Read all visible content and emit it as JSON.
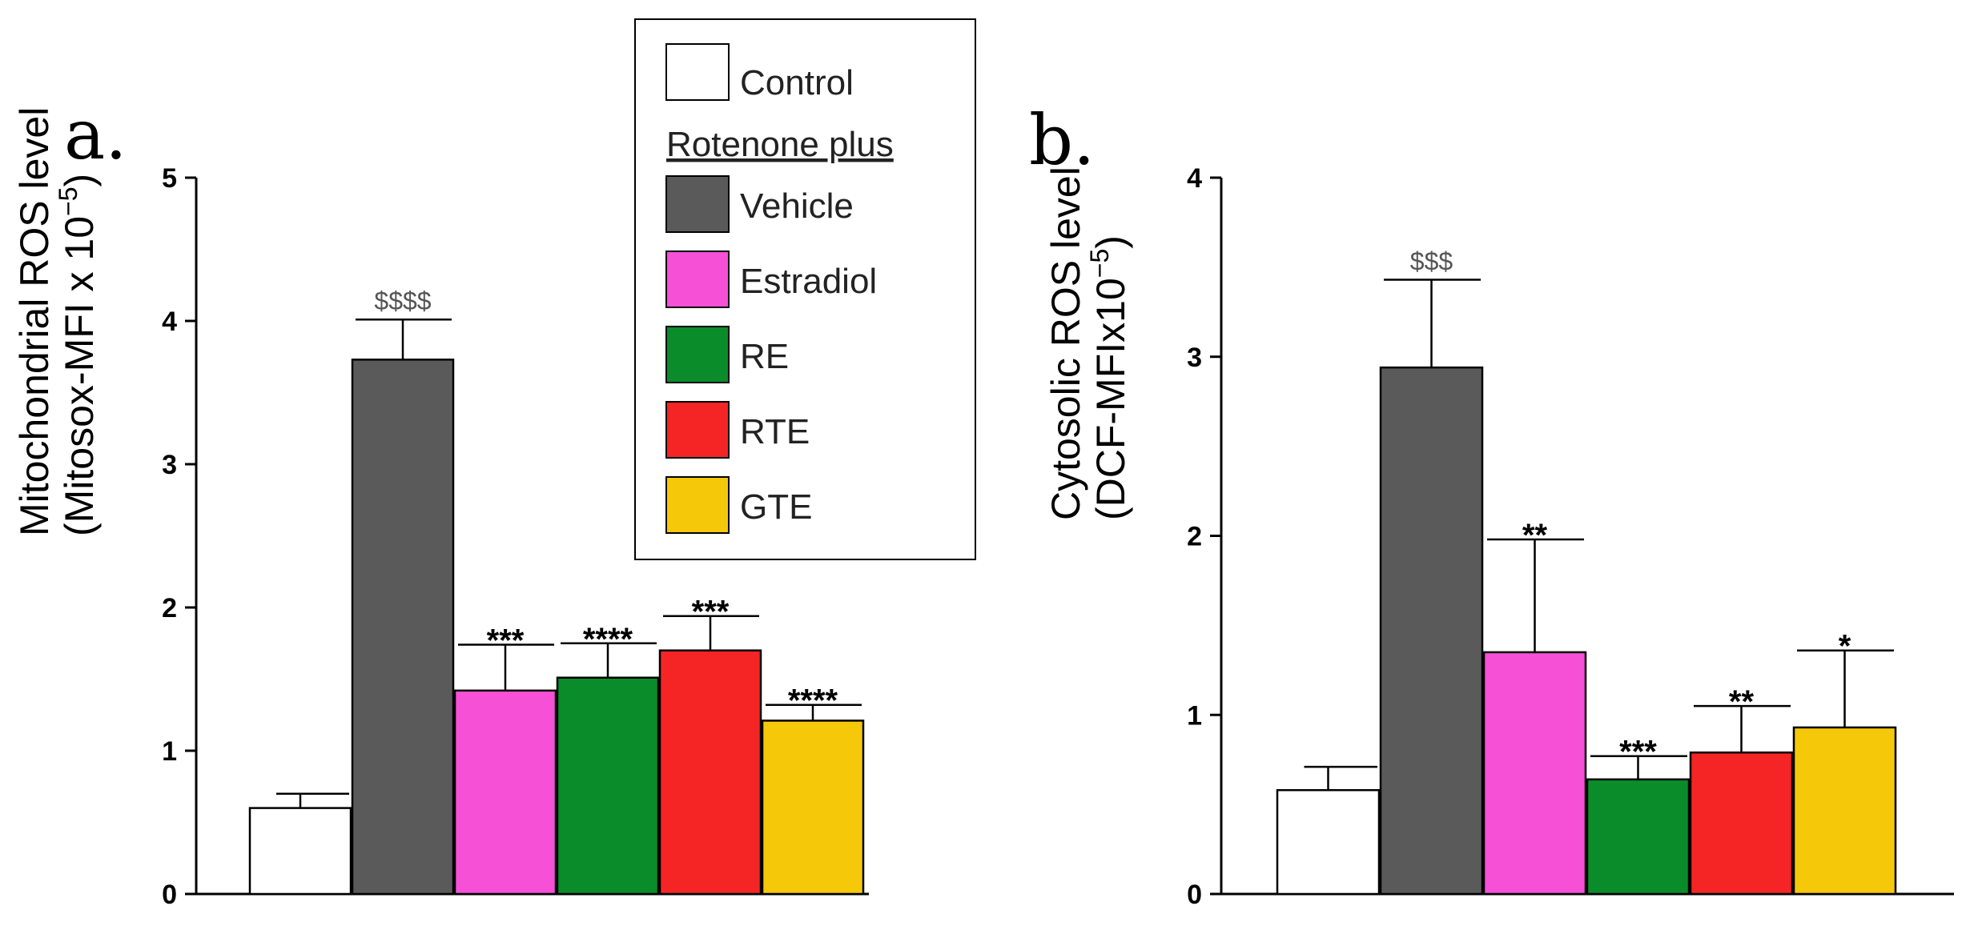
{
  "colors": {
    "Control": "#ffffff",
    "Vehicle": "#5a5a5a",
    "Estradiol": "#f550d6",
    "RE": "#0a8c2a",
    "RTE": "#f52525",
    "GTE": "#f5c80a",
    "axis": "#000000",
    "dollar_text": "#555555"
  },
  "legend": {
    "control_label": "Control",
    "group_heading": "Rotenone plus",
    "entries": [
      "Vehicle",
      "Estradiol",
      "RE",
      "RTE",
      "GTE"
    ]
  },
  "chart_data": [
    {
      "type": "bar",
      "panel_label": "a.",
      "ylabel_line1": "Mitochondrial ROS level",
      "ylabel_line2_prefix": "(Mitosox-MFI x 10",
      "ylabel_exponent": "−5",
      "ylabel_line2_suffix": ")",
      "ylim": [
        0,
        5
      ],
      "yticks": [
        "0",
        "1",
        "2",
        "3",
        "4",
        "5"
      ],
      "categories": [
        "Control",
        "Vehicle",
        "Estradiol",
        "RE",
        "RTE",
        "GTE"
      ],
      "values": [
        0.6,
        3.73,
        1.42,
        1.51,
        1.7,
        1.21
      ],
      "errors": [
        0.1,
        0.28,
        0.32,
        0.24,
        0.24,
        0.11
      ],
      "annotations": [
        "",
        "$$$$",
        "***",
        "****",
        "***",
        "****"
      ]
    },
    {
      "type": "bar",
      "panel_label": "b.",
      "ylabel_line1": "Cytosolic ROS level",
      "ylabel_line2_prefix": "(DCF-MFIx10",
      "ylabel_exponent": "−5",
      "ylabel_line2_suffix": ")",
      "ylim": [
        0,
        4
      ],
      "yticks": [
        "0",
        "1",
        "2",
        "3",
        "4"
      ],
      "categories": [
        "Control",
        "Vehicle",
        "Estradiol",
        "RE",
        "RTE",
        "GTE"
      ],
      "values": [
        0.58,
        2.94,
        1.35,
        0.64,
        0.79,
        0.93
      ],
      "errors": [
        0.13,
        0.49,
        0.63,
        0.13,
        0.26,
        0.43
      ],
      "annotations": [
        "",
        "$$$",
        "**",
        "***",
        "**",
        "*"
      ]
    }
  ]
}
